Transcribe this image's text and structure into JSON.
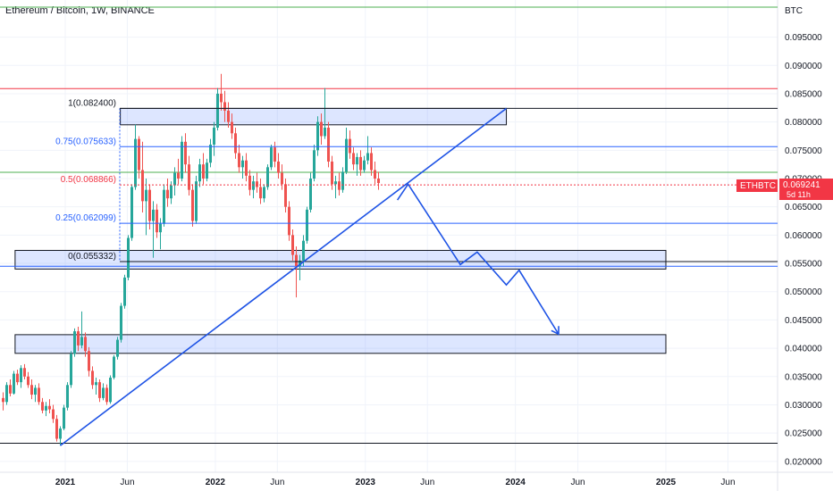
{
  "header": {
    "title": "Ethereum / Bitcoin, 1W, BINANCE"
  },
  "axis": {
    "currency": "BTC"
  },
  "price_badge": {
    "symbol": "ETHBTC",
    "price": "0.069241",
    "countdown": "5d 11h",
    "color": "#f23645"
  },
  "chart_data": {
    "type": "candlestick",
    "title": "Ethereum / Bitcoin, 1W, BINANCE",
    "y_unit": "BTC",
    "ylim": [
      0.0195,
      0.1003
    ],
    "y_ticks": [
      "0.095000",
      "0.090000",
      "0.085000",
      "0.080000",
      "0.075000",
      "0.070000",
      "0.065000",
      "0.060000",
      "0.055000",
      "0.050000",
      "0.045000",
      "0.040000",
      "0.035000",
      "0.030000",
      "0.025000",
      "0.020000"
    ],
    "x_ticks": [
      {
        "label": "2021",
        "date": "2021-01-01",
        "bold": true
      },
      {
        "label": "Jun",
        "date": "2021-06-01",
        "bold": false
      },
      {
        "label": "2022",
        "date": "2022-01-01",
        "bold": true
      },
      {
        "label": "Jun",
        "date": "2022-06-01",
        "bold": false
      },
      {
        "label": "2023",
        "date": "2023-01-01",
        "bold": true
      },
      {
        "label": "Jun",
        "date": "2023-06-01",
        "bold": false
      },
      {
        "label": "2024",
        "date": "2024-01-01",
        "bold": true
      },
      {
        "label": "Jun",
        "date": "2024-06-01",
        "bold": false
      },
      {
        "label": "2025",
        "date": "2025-01-01",
        "bold": true
      },
      {
        "label": "Jun",
        "date": "2025-06-01",
        "bold": false
      }
    ],
    "up_color": "#26a69a",
    "down_color": "#ef5350",
    "fib_levels": [
      {
        "label": "1(0.082400)",
        "value": 0.0824,
        "color": "#131722"
      },
      {
        "label": "0.75(0.075633)",
        "value": 0.075633,
        "color": "#2962ff"
      },
      {
        "label": "0.5(0.068866)",
        "value": 0.068866,
        "color": "#f23645"
      },
      {
        "label": "0.25(0.062099)",
        "value": 0.062099,
        "color": "#2962ff"
      },
      {
        "label": "0(0.055332)",
        "value": 0.055332,
        "color": "#131722"
      }
    ],
    "horizontal_lines": [
      {
        "value": 0.1003,
        "color": "#4caf50"
      },
      {
        "value": 0.0859,
        "color": "#f23645"
      },
      {
        "value": 0.0711,
        "color": "#4caf50"
      },
      {
        "value": 0.0545,
        "color": "#2962ff"
      },
      {
        "value": 0.0232,
        "color": "#131722"
      }
    ],
    "zones": [
      {
        "from": "2021-05-15",
        "to": "2023-12-10",
        "low": 0.0795,
        "high": 0.0824
      },
      {
        "from": "2020-09-01",
        "to": "2025-01-01",
        "low": 0.054,
        "high": 0.0573
      },
      {
        "from": "2020-09-01",
        "to": "2025-01-01",
        "low": 0.0391,
        "high": 0.0424
      }
    ],
    "trendline": {
      "from": {
        "date": "2020-12-20",
        "value": 0.0228
      },
      "to": {
        "date": "2023-12-10",
        "value": 0.0824
      }
    },
    "projection": [
      {
        "date": "2023-03-20",
        "value": 0.0662
      },
      {
        "date": "2023-04-15",
        "value": 0.069
      },
      {
        "date": "2023-08-20",
        "value": 0.0548
      },
      {
        "date": "2023-09-30",
        "value": 0.057
      },
      {
        "date": "2023-12-10",
        "value": 0.0512
      },
      {
        "date": "2024-01-10",
        "value": 0.0538
      },
      {
        "date": "2024-04-15",
        "value": 0.0425
      }
    ],
    "candles": [
      [
        0.0312,
        0.0322,
        0.029,
        0.0305
      ],
      [
        0.0305,
        0.034,
        0.03,
        0.0335
      ],
      [
        0.0335,
        0.0345,
        0.0315,
        0.032
      ],
      [
        0.032,
        0.036,
        0.0318,
        0.0355
      ],
      [
        0.0355,
        0.0362,
        0.0335,
        0.034
      ],
      [
        0.034,
        0.037,
        0.033,
        0.0365
      ],
      [
        0.0365,
        0.0372,
        0.0345,
        0.035
      ],
      [
        0.035,
        0.0358,
        0.033,
        0.0335
      ],
      [
        0.0335,
        0.0345,
        0.031,
        0.0318
      ],
      [
        0.0318,
        0.0335,
        0.0305,
        0.033
      ],
      [
        0.033,
        0.0338,
        0.03,
        0.0305
      ],
      [
        0.0305,
        0.0312,
        0.0285,
        0.029
      ],
      [
        0.029,
        0.0305,
        0.028,
        0.0298
      ],
      [
        0.0298,
        0.031,
        0.0285,
        0.0292
      ],
      [
        0.0292,
        0.03,
        0.0268,
        0.0275
      ],
      [
        0.0275,
        0.0282,
        0.0235,
        0.024
      ],
      [
        0.024,
        0.0262,
        0.0228,
        0.0258
      ],
      [
        0.0258,
        0.03,
        0.0255,
        0.0295
      ],
      [
        0.0295,
        0.034,
        0.029,
        0.0335
      ],
      [
        0.0335,
        0.0395,
        0.033,
        0.039
      ],
      [
        0.039,
        0.0435,
        0.0385,
        0.043
      ],
      [
        0.043,
        0.0438,
        0.0395,
        0.0405
      ],
      [
        0.0405,
        0.0465,
        0.04,
        0.042
      ],
      [
        0.042,
        0.0428,
        0.0385,
        0.0395
      ],
      [
        0.0395,
        0.0402,
        0.035,
        0.036
      ],
      [
        0.036,
        0.0368,
        0.0328,
        0.0335
      ],
      [
        0.0335,
        0.0348,
        0.0318,
        0.034
      ],
      [
        0.034,
        0.0345,
        0.0305,
        0.0312
      ],
      [
        0.0312,
        0.0338,
        0.0308,
        0.033
      ],
      [
        0.033,
        0.0336,
        0.03,
        0.0305
      ],
      [
        0.0305,
        0.0352,
        0.0302,
        0.0348
      ],
      [
        0.0348,
        0.0388,
        0.0345,
        0.0385
      ],
      [
        0.0385,
        0.042,
        0.038,
        0.0415
      ],
      [
        0.0415,
        0.048,
        0.041,
        0.0475
      ],
      [
        0.0475,
        0.053,
        0.047,
        0.0525
      ],
      [
        0.0525,
        0.06,
        0.052,
        0.0595
      ],
      [
        0.0595,
        0.069,
        0.059,
        0.0685
      ],
      [
        0.0685,
        0.0795,
        0.068,
        0.077
      ],
      [
        0.077,
        0.0775,
        0.07,
        0.0715
      ],
      [
        0.0715,
        0.0765,
        0.064,
        0.066
      ],
      [
        0.066,
        0.07,
        0.06,
        0.068
      ],
      [
        0.068,
        0.069,
        0.061,
        0.0625
      ],
      [
        0.0625,
        0.066,
        0.056,
        0.0645
      ],
      [
        0.0645,
        0.0655,
        0.0595,
        0.0605
      ],
      [
        0.0605,
        0.063,
        0.0575,
        0.062
      ],
      [
        0.062,
        0.069,
        0.0615,
        0.068
      ],
      [
        0.068,
        0.07,
        0.065,
        0.0665
      ],
      [
        0.0665,
        0.0695,
        0.0655,
        0.0688
      ],
      [
        0.0688,
        0.072,
        0.067,
        0.071
      ],
      [
        0.071,
        0.0735,
        0.069,
        0.07
      ],
      [
        0.07,
        0.0775,
        0.0695,
        0.0765
      ],
      [
        0.0765,
        0.078,
        0.071,
        0.0725
      ],
      [
        0.0725,
        0.074,
        0.067,
        0.068
      ],
      [
        0.068,
        0.069,
        0.0615,
        0.0625
      ],
      [
        0.0625,
        0.0705,
        0.062,
        0.0695
      ],
      [
        0.0695,
        0.0735,
        0.0685,
        0.0725
      ],
      [
        0.0725,
        0.0745,
        0.069,
        0.07
      ],
      [
        0.07,
        0.0735,
        0.0695,
        0.0728
      ],
      [
        0.0728,
        0.077,
        0.072,
        0.076
      ],
      [
        0.076,
        0.08,
        0.074,
        0.079
      ],
      [
        0.079,
        0.086,
        0.0785,
        0.085
      ],
      [
        0.085,
        0.0885,
        0.082,
        0.0835
      ],
      [
        0.0835,
        0.0855,
        0.08,
        0.082
      ],
      [
        0.082,
        0.0835,
        0.079,
        0.08
      ],
      [
        0.08,
        0.0815,
        0.077,
        0.078
      ],
      [
        0.078,
        0.079,
        0.0735,
        0.0745
      ],
      [
        0.0745,
        0.076,
        0.071,
        0.072
      ],
      [
        0.072,
        0.074,
        0.07,
        0.0732
      ],
      [
        0.0732,
        0.0745,
        0.0695,
        0.0705
      ],
      [
        0.0705,
        0.0715,
        0.067,
        0.068
      ],
      [
        0.068,
        0.0705,
        0.0665,
        0.0695
      ],
      [
        0.0695,
        0.071,
        0.0675,
        0.0685
      ],
      [
        0.0685,
        0.07,
        0.0655,
        0.0665
      ],
      [
        0.0665,
        0.069,
        0.0658,
        0.0685
      ],
      [
        0.0685,
        0.0725,
        0.068,
        0.072
      ],
      [
        0.072,
        0.076,
        0.0715,
        0.0755
      ],
      [
        0.0755,
        0.0765,
        0.072,
        0.073
      ],
      [
        0.073,
        0.0745,
        0.07,
        0.071
      ],
      [
        0.071,
        0.0725,
        0.068,
        0.069
      ],
      [
        0.069,
        0.07,
        0.064,
        0.065
      ],
      [
        0.065,
        0.066,
        0.059,
        0.06
      ],
      [
        0.06,
        0.061,
        0.0555,
        0.0565
      ],
      [
        0.0565,
        0.058,
        0.049,
        0.0545
      ],
      [
        0.0545,
        0.0565,
        0.052,
        0.0555
      ],
      [
        0.0555,
        0.06,
        0.0545,
        0.059
      ],
      [
        0.059,
        0.065,
        0.0585,
        0.0645
      ],
      [
        0.0645,
        0.071,
        0.064,
        0.07
      ],
      [
        0.07,
        0.076,
        0.0695,
        0.075
      ],
      [
        0.075,
        0.081,
        0.074,
        0.08
      ],
      [
        0.08,
        0.0815,
        0.076,
        0.0775
      ],
      [
        0.0775,
        0.086,
        0.077,
        0.079
      ],
      [
        0.079,
        0.08,
        0.072,
        0.073
      ],
      [
        0.073,
        0.074,
        0.068,
        0.069
      ],
      [
        0.069,
        0.0705,
        0.0665,
        0.0695
      ],
      [
        0.0695,
        0.071,
        0.067,
        0.068
      ],
      [
        0.068,
        0.072,
        0.0675,
        0.0712
      ],
      [
        0.0712,
        0.079,
        0.0708,
        0.077
      ],
      [
        0.077,
        0.0785,
        0.0735,
        0.0745
      ],
      [
        0.0745,
        0.0755,
        0.0715,
        0.0725
      ],
      [
        0.0725,
        0.0745,
        0.0705,
        0.0738
      ],
      [
        0.0738,
        0.075,
        0.0705,
        0.0715
      ],
      [
        0.0715,
        0.074,
        0.071,
        0.0732
      ],
      [
        0.0732,
        0.0775,
        0.0725,
        0.0745
      ],
      [
        0.0745,
        0.0755,
        0.0705,
        0.0715
      ],
      [
        0.0715,
        0.073,
        0.069,
        0.07
      ],
      [
        0.07,
        0.0712,
        0.068,
        0.0692
      ]
    ]
  }
}
